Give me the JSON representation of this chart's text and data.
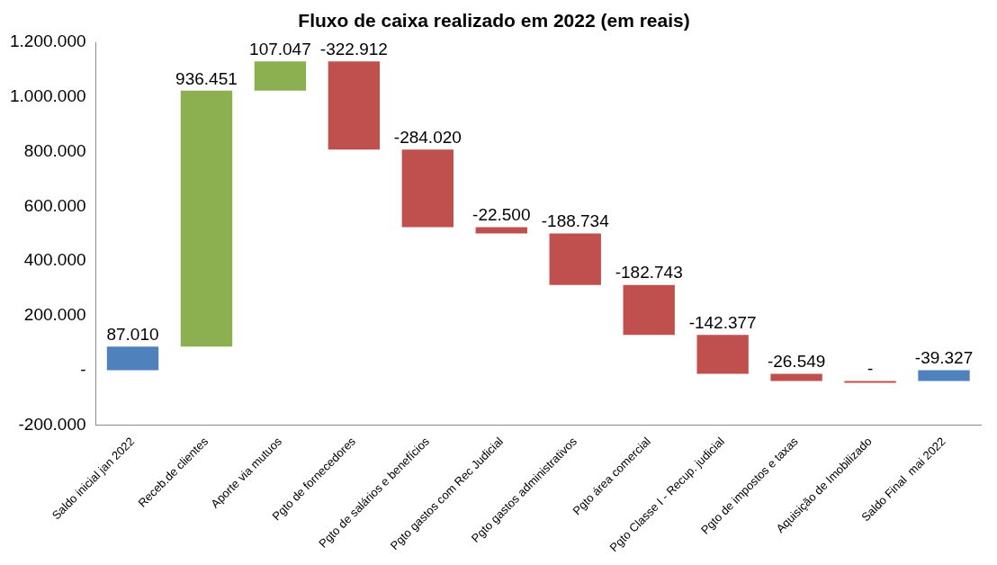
{
  "chart_data": {
    "type": "bar",
    "title": "Fluxo de caixa realizado em 2022 (em reais)",
    "categories": [
      "Saldo inicial jan 2022",
      "Receb.de clientes",
      "Aporte via mutuos",
      "Pgto de fornecedores",
      "Pgto de salários e benefícios",
      "Pgto gastos com Rec Judicial",
      "Pgto gastos administrativos",
      "Pgto área comercial",
      "Pgto Classe I - Recup. judicial",
      "Pgto de impostos e taxas",
      "Aquisição de Imobilizado",
      "Saldo Final  mai 2022"
    ],
    "values": [
      87010,
      936451,
      107047,
      -322912,
      -284020,
      -22500,
      -188734,
      -182743,
      -142377,
      -26549,
      0,
      -39327
    ],
    "base": [
      0,
      87010,
      1023461,
      1130508,
      807596,
      523576,
      501076,
      312342,
      129599,
      -12778,
      -39327,
      0
    ],
    "colors": [
      "#4f81bd",
      "#8cb04f",
      "#8cb04f",
      "#c0504d",
      "#c0504d",
      "#c0504d",
      "#c0504d",
      "#c0504d",
      "#c0504d",
      "#c0504d",
      "#c0504d",
      "#4f81bd"
    ],
    "value_labels": [
      "87.010",
      "936.451",
      "107.047",
      "-322.912",
      "-284.020",
      "-22.500",
      "-188.734",
      "-182.743",
      "-142.377",
      "-26.549",
      "-",
      "-39.327"
    ],
    "ylim": [
      -200000,
      1200000
    ],
    "yticks": [
      {
        "value": -200000,
        "label": "-200.000"
      },
      {
        "value": 0,
        "label": "-"
      },
      {
        "value": 200000,
        "label": "200.000"
      },
      {
        "value": 400000,
        "label": "400.000"
      },
      {
        "value": 600000,
        "label": "600.000"
      },
      {
        "value": 800000,
        "label": "800.000"
      },
      {
        "value": 1000000,
        "label": "1.000.000"
      },
      {
        "value": 1200000,
        "label": "1.200.000"
      }
    ],
    "grid": false,
    "legend": false
  }
}
